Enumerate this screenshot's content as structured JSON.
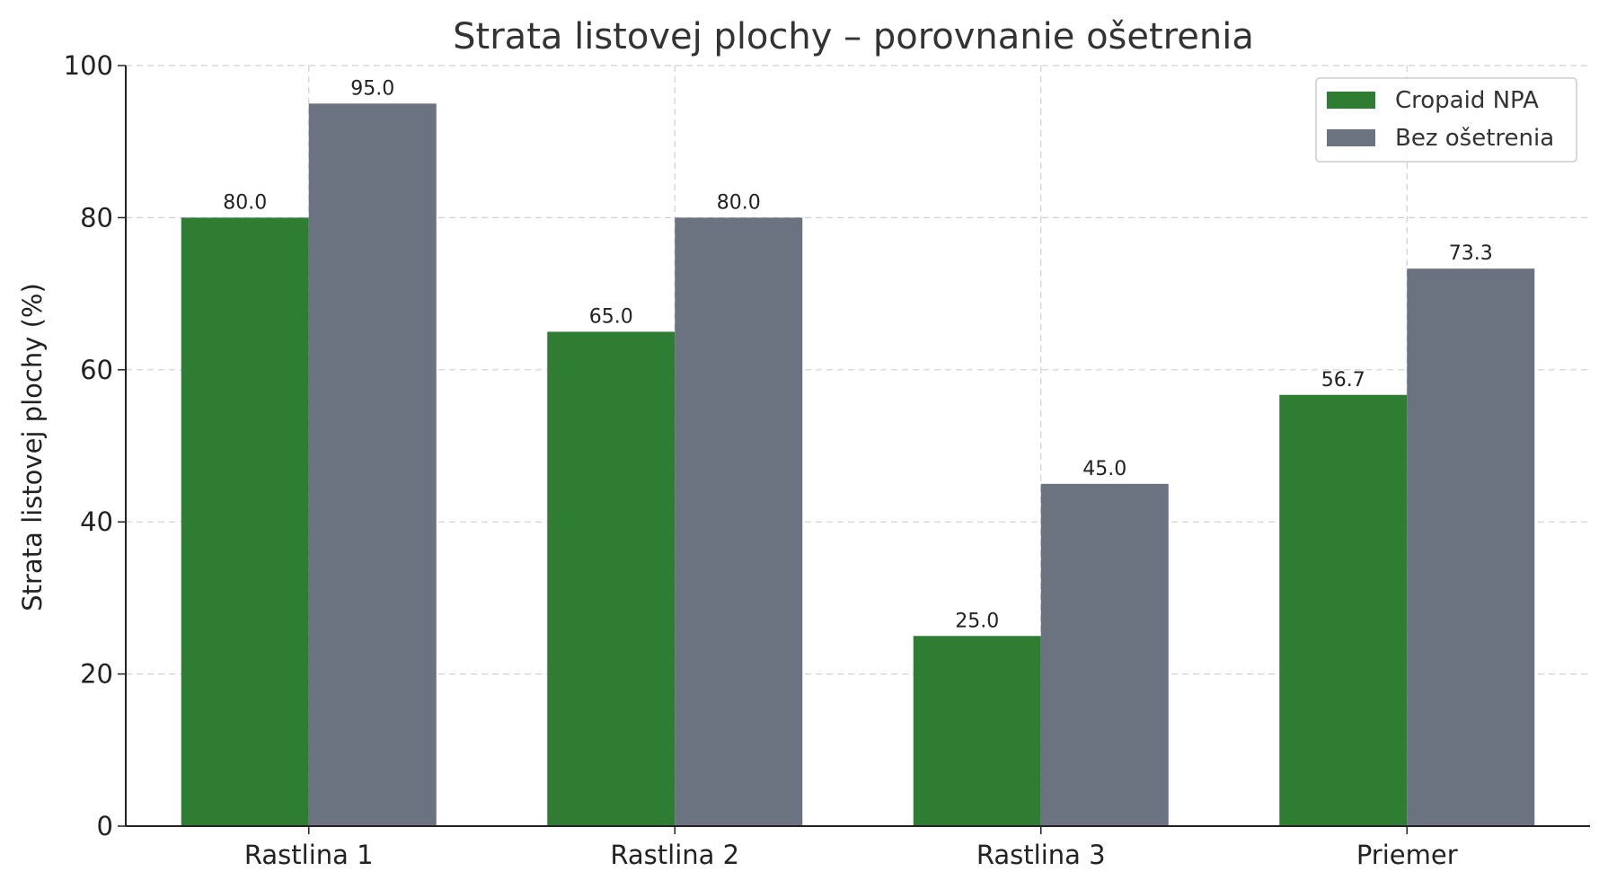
{
  "chart_data": {
    "type": "bar",
    "title": "Strata listovej plochy – porovnanie ošetrenia",
    "xlabel": "",
    "ylabel": "Strata listovej plochy (%)",
    "categories": [
      "Rastlina 1",
      "Rastlina 2",
      "Rastlina 3",
      "Priemer"
    ],
    "series": [
      {
        "name": "Cropaid NPA",
        "color": "#2e7d32",
        "values": [
          80.0,
          65.0,
          25.0,
          56.7
        ],
        "labels": [
          "80.0",
          "65.0",
          "25.0",
          "56.7"
        ]
      },
      {
        "name": "Bez ošetrenia",
        "color": "#6b7280",
        "values": [
          95.0,
          80.0,
          45.0,
          73.3
        ],
        "labels": [
          "95.0",
          "80.0",
          "45.0",
          "73.3"
        ]
      }
    ],
    "ylim": [
      0,
      100
    ],
    "yticks": [
      "0",
      "20",
      "40",
      "60",
      "80",
      "100"
    ],
    "grid": true,
    "legend_position": "top-right"
  }
}
